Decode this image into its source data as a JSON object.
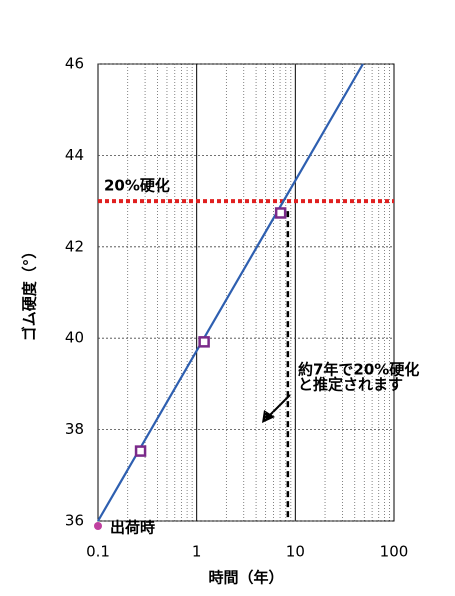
{
  "chart_data": {
    "type": "line",
    "xlabel": "時間（年）",
    "ylabel": "ゴム硬度（°）",
    "xlim": [
      0.1,
      100
    ],
    "ylim": [
      36,
      46
    ],
    "xlog": true,
    "grid": true,
    "minor_grid": true,
    "xticks": [
      0.1,
      1,
      10,
      100
    ],
    "yticks": [
      36,
      38,
      40,
      42,
      44,
      46
    ],
    "series": [
      {
        "color": "#2e5fb0",
        "x": [
          0.1,
          48.4
        ],
        "values": [
          36,
          46
        ]
      },
      {
        "color": "#7a2a8a",
        "marker": "square",
        "x": [
          0.27,
          1.19,
          7.1
        ],
        "values": [
          37.53,
          39.92,
          42.74
        ]
      }
    ],
    "threshold": {
      "value": 43,
      "label": "20%硬化",
      "color": "#e02020"
    },
    "vline": {
      "value": 8.4,
      "color": "#000000"
    },
    "origin_note": {
      "text": "出荷時",
      "x": 0.1,
      "y": 36,
      "color": "#c040a0"
    },
    "annotation": [
      "約7年で20%硬化",
      "と推定されます"
    ]
  }
}
